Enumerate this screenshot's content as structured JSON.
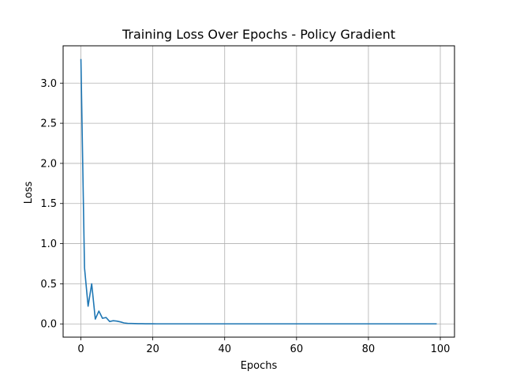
{
  "chart_data": {
    "type": "line",
    "title": "Training Loss Over Epochs - Policy Gradient",
    "xlabel": "Epochs",
    "ylabel": "Loss",
    "xlim": [
      -4.95,
      103.95
    ],
    "ylim": [
      -0.165,
      3.465
    ],
    "xticks": [
      0,
      20,
      40,
      60,
      80,
      100
    ],
    "xtick_labels": [
      "0",
      "20",
      "40",
      "60",
      "80",
      "100"
    ],
    "yticks": [
      0.0,
      0.5,
      1.0,
      1.5,
      2.0,
      2.5,
      3.0
    ],
    "ytick_labels": [
      "0.0",
      "0.5",
      "1.0",
      "1.5",
      "2.0",
      "2.5",
      "3.0"
    ],
    "grid": true,
    "legend": "none",
    "series": [
      {
        "color": "#1f77b4",
        "x": [
          0,
          1,
          2,
          3,
          4,
          5,
          6,
          7,
          8,
          9,
          10,
          11,
          12,
          13,
          14,
          15,
          16,
          17,
          18,
          19,
          20,
          21,
          22,
          23,
          24,
          25,
          26,
          27,
          28,
          29,
          30,
          31,
          32,
          33,
          34,
          35,
          36,
          37,
          38,
          39,
          40,
          41,
          42,
          43,
          44,
          45,
          46,
          47,
          48,
          49,
          50,
          51,
          52,
          53,
          54,
          55,
          56,
          57,
          58,
          59,
          60,
          61,
          62,
          63,
          64,
          65,
          66,
          67,
          68,
          69,
          70,
          71,
          72,
          73,
          74,
          75,
          76,
          77,
          78,
          79,
          80,
          81,
          82,
          83,
          84,
          85,
          86,
          87,
          88,
          89,
          90,
          91,
          92,
          93,
          94,
          95,
          96,
          97,
          98,
          99
        ],
        "y": [
          3.3,
          0.7,
          0.22,
          0.5,
          0.06,
          0.16,
          0.07,
          0.08,
          0.03,
          0.04,
          0.035,
          0.025,
          0.012,
          0.007,
          0.005,
          0.004,
          0.003,
          0.003,
          0.002,
          0.002,
          0.002,
          0.001,
          0.001,
          0.001,
          0.001,
          0.001,
          0.001,
          0.001,
          0.001,
          0.001,
          0.001,
          0.001,
          0.001,
          0.001,
          0.001,
          0.001,
          0.001,
          0.001,
          0.001,
          0.001,
          0.001,
          0.001,
          0.001,
          0.001,
          0.001,
          0.001,
          0.001,
          0.001,
          0.001,
          0.001,
          0.001,
          0.001,
          0.001,
          0.001,
          0.001,
          0.001,
          0.001,
          0.001,
          0.001,
          0.001,
          0.001,
          0.001,
          0.001,
          0.001,
          0.001,
          0.001,
          0.001,
          0.001,
          0.001,
          0.001,
          0.001,
          0.001,
          0.001,
          0.001,
          0.001,
          0.001,
          0.001,
          0.001,
          0.001,
          0.001,
          0.001,
          0.001,
          0.001,
          0.001,
          0.001,
          0.001,
          0.001,
          0.001,
          0.001,
          0.001,
          0.001,
          0.001,
          0.001,
          0.001,
          0.001,
          0.001,
          0.001,
          0.001,
          0.001,
          0.001
        ]
      }
    ]
  }
}
